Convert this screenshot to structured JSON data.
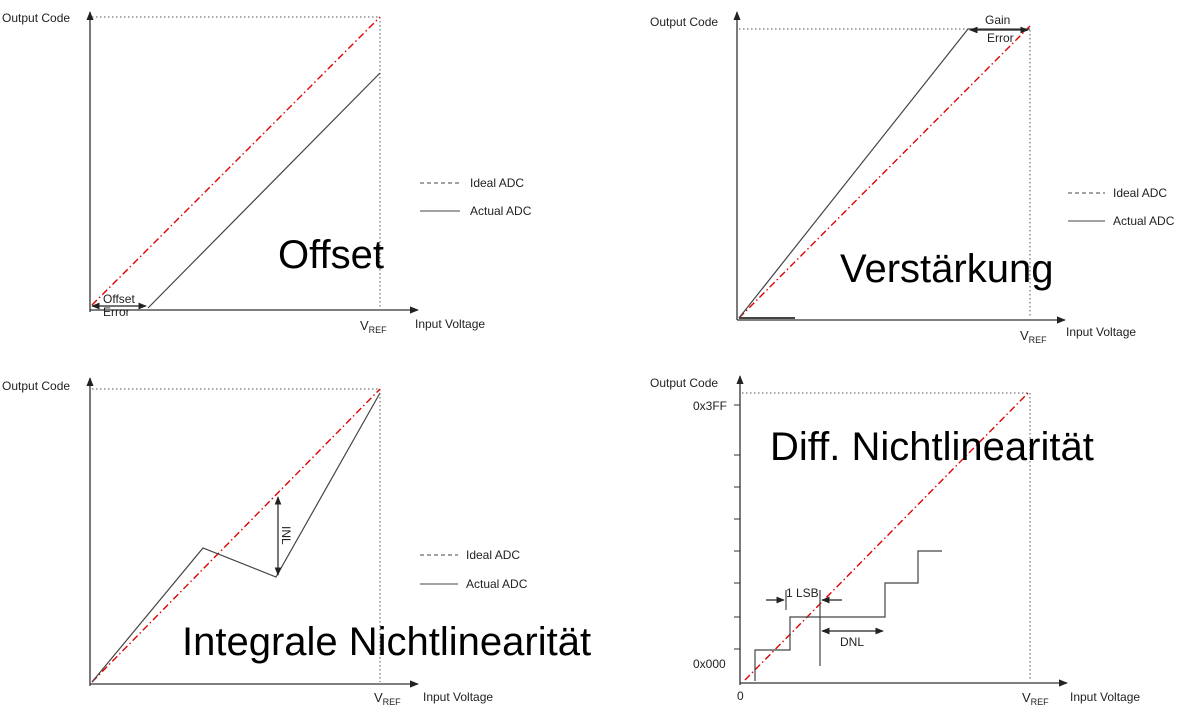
{
  "axis": {
    "y_label": "Output Code",
    "x_label": "Input Voltage",
    "vref_main": "V",
    "vref_sub": "REF"
  },
  "legend": {
    "ideal": "Ideal ADC",
    "actual": "Actual ADC"
  },
  "panels": {
    "offset": {
      "title": "Offset",
      "error_line1": "Offset",
      "error_line2": "Error"
    },
    "gain": {
      "title": "Verstärkung",
      "error_line1": "Gain",
      "error_line2": "Error"
    },
    "inl": {
      "title": "Integrale Nichtlinearität",
      "marker": "INL"
    },
    "dnl": {
      "title": "Diff. Nichtlinearität",
      "y_max": "0x3FF",
      "y_min": "0x000",
      "x_zero": "0",
      "lsb": "1 LSB",
      "dnl": "DNL"
    }
  },
  "colors": {
    "ideal_line": "#e00000",
    "actual_line": "#444444"
  }
}
